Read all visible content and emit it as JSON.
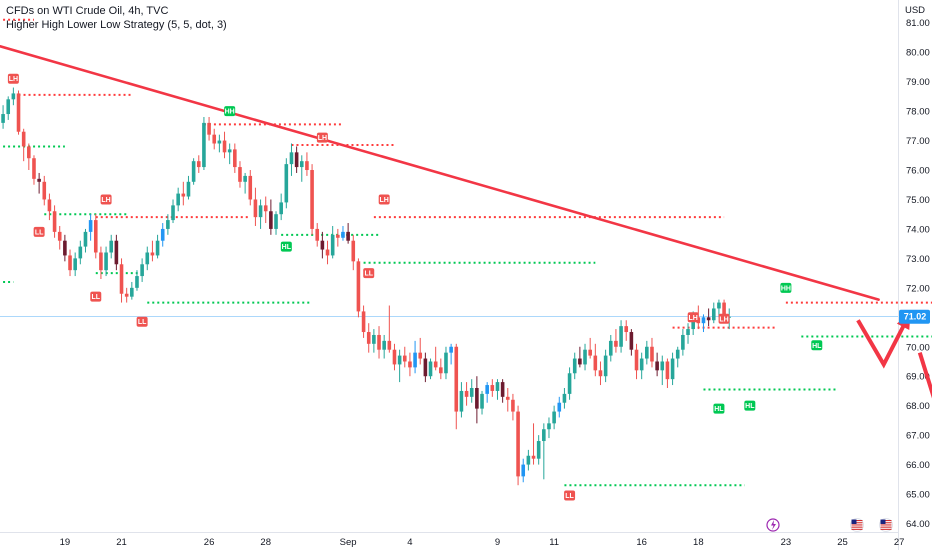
{
  "header": {
    "symbol_line": "CFDs on WTI Crude Oil, 4h, TVC",
    "indicator_line": "Higher High Lower Low Strategy (5, 5, dot, 3)",
    "currency": "USD"
  },
  "colors": {
    "up": "#26a69a",
    "up_alt": "#2196f3",
    "down": "#ef5350",
    "down_dark": "#6d1b2f",
    "trendline": "#f23645",
    "support": "#00c853",
    "resistance": "#ff3b3b",
    "last_price": "#2196f3",
    "badge_green": "#00c853",
    "badge_red": "#ef5350"
  },
  "chart_data": {
    "type": "candlestick",
    "ylim": [
      64.0,
      81.5
    ],
    "y_ticks": [
      "64.00",
      "65.00",
      "66.00",
      "67.00",
      "68.00",
      "69.00",
      "70.00",
      "71.00",
      "72.00",
      "73.00",
      "74.00",
      "75.00",
      "76.00",
      "77.00",
      "78.00",
      "79.00",
      "80.00",
      "81.00"
    ],
    "x_ticks": [
      {
        "label": "19",
        "bar": 12
      },
      {
        "label": "21",
        "bar": 23
      },
      {
        "label": "26",
        "bar": 40
      },
      {
        "label": "28",
        "bar": 51
      },
      {
        "label": "Sep",
        "bar": 67
      },
      {
        "label": "4",
        "bar": 79
      },
      {
        "label": "9",
        "bar": 96
      },
      {
        "label": "11",
        "bar": 107
      },
      {
        "label": "16",
        "bar": 124
      },
      {
        "label": "18",
        "bar": 135
      },
      {
        "label": "23",
        "bar": 152
      },
      {
        "label": "25",
        "bar": 163
      },
      {
        "label": "27",
        "bar": 174
      }
    ],
    "last_price": "71.02",
    "candles": [
      [
        77.6,
        78.2,
        77.4,
        77.9
      ],
      [
        77.9,
        78.5,
        77.7,
        78.4
      ],
      [
        78.4,
        78.8,
        78.2,
        78.6
      ],
      [
        78.6,
        78.7,
        77.2,
        77.3
      ],
      [
        77.3,
        77.4,
        76.3,
        76.8
      ],
      [
        76.8,
        76.9,
        76.0,
        76.4
      ],
      [
        76.4,
        76.5,
        75.5,
        75.7
      ],
      [
        75.7,
        75.9,
        75.2,
        75.6
      ],
      [
        75.6,
        75.8,
        74.8,
        75.0
      ],
      [
        75.0,
        75.2,
        74.3,
        74.6
      ],
      [
        74.6,
        74.8,
        73.7,
        73.9
      ],
      [
        73.9,
        74.1,
        73.3,
        73.6
      ],
      [
        73.6,
        73.8,
        72.9,
        73.1
      ],
      [
        73.1,
        73.3,
        72.4,
        72.6
      ],
      [
        72.6,
        73.2,
        72.4,
        73.0
      ],
      [
        73.0,
        73.6,
        72.8,
        73.4
      ],
      [
        73.4,
        74.0,
        73.2,
        73.9
      ],
      [
        73.9,
        74.5,
        73.6,
        74.3
      ],
      [
        74.3,
        74.5,
        73.0,
        73.2
      ],
      [
        73.2,
        73.4,
        72.3,
        72.6
      ],
      [
        72.6,
        73.4,
        72.4,
        73.2
      ],
      [
        73.2,
        73.8,
        73.0,
        73.6
      ],
      [
        73.6,
        73.8,
        72.6,
        72.8
      ],
      [
        72.8,
        73.0,
        71.5,
        71.8
      ],
      [
        71.8,
        72.0,
        71.5,
        71.7
      ],
      [
        71.7,
        72.2,
        71.6,
        72.0
      ],
      [
        72.0,
        72.6,
        71.9,
        72.4
      ],
      [
        72.4,
        73.0,
        72.2,
        72.8
      ],
      [
        72.8,
        73.4,
        72.6,
        73.2
      ],
      [
        73.2,
        73.6,
        72.9,
        73.1
      ],
      [
        73.1,
        73.8,
        73.0,
        73.6
      ],
      [
        73.6,
        74.2,
        73.4,
        74.0
      ],
      [
        74.0,
        74.5,
        73.8,
        74.3
      ],
      [
        74.3,
        75.0,
        74.2,
        74.8
      ],
      [
        74.8,
        75.4,
        74.6,
        75.2
      ],
      [
        75.2,
        75.6,
        74.8,
        75.1
      ],
      [
        75.1,
        75.8,
        75.0,
        75.6
      ],
      [
        75.6,
        76.4,
        75.5,
        76.3
      ],
      [
        76.3,
        76.5,
        75.9,
        76.1
      ],
      [
        76.1,
        77.8,
        76.0,
        77.6
      ],
      [
        77.6,
        77.8,
        77.0,
        77.2
      ],
      [
        77.2,
        77.4,
        76.7,
        76.9
      ],
      [
        76.9,
        77.2,
        76.6,
        77.0
      ],
      [
        77.0,
        77.3,
        76.4,
        76.6
      ],
      [
        76.6,
        76.9,
        76.2,
        76.7
      ],
      [
        76.7,
        76.9,
        75.9,
        76.1
      ],
      [
        76.1,
        76.3,
        75.4,
        75.6
      ],
      [
        75.6,
        75.9,
        75.2,
        75.8
      ],
      [
        75.8,
        76.0,
        74.8,
        75.0
      ],
      [
        75.0,
        75.4,
        74.1,
        74.4
      ],
      [
        74.4,
        75.0,
        74.0,
        74.8
      ],
      [
        74.8,
        75.1,
        74.2,
        74.6
      ],
      [
        74.6,
        75.0,
        73.8,
        74.0
      ],
      [
        74.0,
        74.6,
        73.8,
        74.5
      ],
      [
        74.5,
        75.2,
        74.3,
        74.9
      ],
      [
        74.9,
        76.4,
        74.7,
        76.2
      ],
      [
        76.2,
        76.9,
        75.8,
        76.6
      ],
      [
        76.6,
        76.8,
        75.9,
        76.1
      ],
      [
        76.1,
        76.5,
        75.6,
        76.3
      ],
      [
        76.3,
        76.6,
        75.8,
        76.0
      ],
      [
        76.0,
        76.2,
        73.8,
        74.0
      ],
      [
        74.0,
        74.2,
        73.4,
        73.6
      ],
      [
        73.6,
        73.9,
        73.0,
        73.3
      ],
      [
        73.3,
        73.6,
        72.8,
        73.1
      ],
      [
        73.1,
        74.1,
        73.0,
        73.8
      ],
      [
        73.8,
        74.0,
        73.4,
        73.7
      ],
      [
        73.7,
        74.1,
        73.6,
        73.9
      ],
      [
        73.9,
        74.2,
        73.5,
        73.6
      ],
      [
        73.6,
        73.8,
        72.6,
        72.9
      ],
      [
        72.9,
        73.0,
        71.0,
        71.2
      ],
      [
        71.2,
        71.4,
        70.3,
        70.5
      ],
      [
        70.5,
        70.8,
        69.8,
        70.1
      ],
      [
        70.1,
        70.6,
        69.8,
        70.4
      ],
      [
        70.4,
        70.7,
        69.6,
        69.9
      ],
      [
        69.9,
        70.4,
        69.6,
        70.2
      ],
      [
        70.2,
        71.4,
        69.8,
        69.9
      ],
      [
        69.9,
        70.1,
        69.2,
        69.4
      ],
      [
        69.4,
        69.9,
        68.8,
        69.7
      ],
      [
        69.7,
        70.0,
        69.3,
        69.5
      ],
      [
        69.5,
        69.8,
        69.0,
        69.3
      ],
      [
        69.3,
        70.2,
        69.1,
        69.8
      ],
      [
        69.8,
        70.3,
        69.4,
        69.6
      ],
      [
        69.6,
        69.8,
        68.8,
        69.0
      ],
      [
        69.0,
        69.6,
        68.9,
        69.5
      ],
      [
        69.5,
        70.0,
        69.2,
        69.3
      ],
      [
        69.3,
        69.6,
        68.9,
        69.1
      ],
      [
        69.1,
        70.0,
        68.9,
        69.8
      ],
      [
        69.8,
        70.1,
        69.4,
        70.0
      ],
      [
        70.0,
        70.1,
        67.2,
        67.8
      ],
      [
        67.8,
        68.8,
        67.6,
        68.5
      ],
      [
        68.5,
        68.8,
        68.0,
        68.3
      ],
      [
        68.3,
        68.9,
        68.1,
        68.6
      ],
      [
        68.6,
        69.0,
        67.4,
        67.9
      ],
      [
        67.9,
        68.5,
        67.7,
        68.4
      ],
      [
        68.4,
        68.8,
        68.1,
        68.7
      ],
      [
        68.7,
        68.9,
        68.3,
        68.5
      ],
      [
        68.5,
        68.9,
        68.2,
        68.8
      ],
      [
        68.8,
        68.9,
        68.1,
        68.3
      ],
      [
        68.3,
        68.6,
        67.8,
        68.2
      ],
      [
        68.2,
        68.4,
        67.5,
        67.8
      ],
      [
        67.8,
        68.0,
        65.3,
        65.6
      ],
      [
        65.6,
        66.2,
        65.4,
        66.0
      ],
      [
        66.0,
        66.5,
        65.8,
        66.3
      ],
      [
        66.3,
        67.4,
        66.0,
        66.2
      ],
      [
        66.2,
        67.0,
        66.0,
        66.8
      ],
      [
        66.8,
        67.4,
        65.5,
        67.2
      ],
      [
        67.2,
        67.6,
        66.9,
        67.4
      ],
      [
        67.4,
        68.0,
        67.2,
        67.8
      ],
      [
        67.8,
        68.3,
        67.6,
        68.1
      ],
      [
        68.1,
        68.6,
        67.9,
        68.4
      ],
      [
        68.4,
        69.3,
        68.2,
        69.1
      ],
      [
        69.1,
        69.8,
        68.9,
        69.6
      ],
      [
        69.6,
        70.0,
        69.3,
        69.4
      ],
      [
        69.4,
        70.1,
        69.2,
        69.9
      ],
      [
        69.9,
        70.3,
        69.6,
        69.7
      ],
      [
        69.7,
        70.1,
        69.0,
        69.2
      ],
      [
        69.2,
        69.5,
        68.7,
        69.0
      ],
      [
        69.0,
        69.9,
        68.8,
        69.7
      ],
      [
        69.7,
        70.4,
        69.5,
        70.2
      ],
      [
        70.2,
        70.6,
        69.8,
        70.0
      ],
      [
        70.0,
        70.9,
        69.8,
        70.7
      ],
      [
        70.7,
        70.9,
        70.2,
        70.5
      ],
      [
        70.5,
        70.6,
        69.7,
        69.9
      ],
      [
        69.9,
        70.1,
        68.9,
        69.2
      ],
      [
        69.2,
        69.8,
        68.9,
        69.6
      ],
      [
        69.6,
        70.2,
        69.4,
        70.0
      ],
      [
        70.0,
        70.3,
        69.3,
        69.5
      ],
      [
        69.5,
        69.8,
        69.0,
        69.2
      ],
      [
        69.2,
        69.7,
        68.7,
        69.5
      ],
      [
        69.5,
        69.6,
        68.6,
        68.9
      ],
      [
        68.9,
        69.8,
        68.7,
        69.6
      ],
      [
        69.6,
        70.0,
        69.3,
        69.9
      ],
      [
        69.9,
        70.6,
        69.7,
        70.4
      ],
      [
        70.4,
        70.8,
        70.1,
        70.6
      ],
      [
        70.6,
        71.2,
        70.4,
        71.0
      ],
      [
        71.0,
        71.4,
        70.6,
        70.8
      ],
      [
        70.8,
        71.1,
        70.5,
        71.0
      ],
      [
        71.0,
        71.3,
        70.7,
        70.9
      ],
      [
        70.9,
        71.5,
        70.8,
        71.3
      ],
      [
        71.3,
        71.6,
        71.0,
        71.5
      ],
      [
        71.5,
        71.6,
        70.8,
        71.0
      ],
      [
        71.0,
        71.3,
        70.6,
        71.02
      ]
    ],
    "resistance_lines": [
      {
        "level": 81.1,
        "from": 0,
        "to": 6
      },
      {
        "level": 78.55,
        "from": 3,
        "to": 25
      },
      {
        "level": 77.55,
        "from": 39,
        "to": 66
      },
      {
        "level": 76.85,
        "from": 56,
        "to": 76
      },
      {
        "level": 74.4,
        "from": 18,
        "to": 48
      },
      {
        "level": 74.4,
        "from": 72,
        "to": 140
      },
      {
        "level": 70.65,
        "from": 130,
        "to": 150
      },
      {
        "level": 71.5,
        "from": 152,
        "to": 186
      }
    ],
    "support_lines": [
      {
        "level": 76.8,
        "from": 0,
        "to": 12
      },
      {
        "level": 74.5,
        "from": 8,
        "to": 24
      },
      {
        "level": 72.5,
        "from": 18,
        "to": 27
      },
      {
        "level": 71.5,
        "from": 28,
        "to": 60
      },
      {
        "level": 73.8,
        "from": 54,
        "to": 73
      },
      {
        "level": 72.85,
        "from": 70,
        "to": 115
      },
      {
        "level": 65.3,
        "from": 109,
        "to": 144
      },
      {
        "level": 68.55,
        "from": 136,
        "to": 162
      },
      {
        "level": 70.35,
        "from": 155,
        "to": 186
      },
      {
        "level": 72.2,
        "from": 0,
        "to": 2
      }
    ],
    "trendline": {
      "from": {
        "bar": 0,
        "price": 80.2
      },
      "to": {
        "bar": 170,
        "price": 71.6
      }
    },
    "badges": [
      {
        "text": "LH",
        "bar": 2,
        "price": 79.1,
        "kind": "red"
      },
      {
        "text": "LL",
        "bar": 7,
        "price": 73.9,
        "kind": "red"
      },
      {
        "text": "LH",
        "bar": 20,
        "price": 75.0,
        "kind": "red"
      },
      {
        "text": "LL",
        "bar": 18,
        "price": 71.7,
        "kind": "red"
      },
      {
        "text": "LL",
        "bar": 27,
        "price": 70.85,
        "kind": "red"
      },
      {
        "text": "HH",
        "bar": 44,
        "price": 78.0,
        "kind": "green"
      },
      {
        "text": "LH",
        "bar": 62,
        "price": 77.1,
        "kind": "red"
      },
      {
        "text": "HL",
        "bar": 55,
        "price": 73.4,
        "kind": "green"
      },
      {
        "text": "LH",
        "bar": 74,
        "price": 75.0,
        "kind": "red"
      },
      {
        "text": "LL",
        "bar": 71,
        "price": 72.5,
        "kind": "red"
      },
      {
        "text": "LL",
        "bar": 110,
        "price": 64.95,
        "kind": "red"
      },
      {
        "text": "LH",
        "bar": 134,
        "price": 71.0,
        "kind": "red"
      },
      {
        "text": "LH",
        "bar": 140,
        "price": 70.95,
        "kind": "red"
      },
      {
        "text": "HL",
        "bar": 139,
        "price": 67.9,
        "kind": "green"
      },
      {
        "text": "HL",
        "bar": 145,
        "price": 68.0,
        "kind": "green"
      },
      {
        "text": "HH",
        "bar": 152,
        "price": 72.0,
        "kind": "green"
      },
      {
        "text": "HL",
        "bar": 158,
        "price": 70.05,
        "kind": "green"
      }
    ],
    "forecast_arrows": [
      {
        "points": [
          [
            166,
            70.9
          ],
          [
            171,
            69.4
          ],
          [
            176,
            71.1
          ]
        ]
      },
      {
        "points": [
          [
            178,
            69.8
          ],
          [
            183,
            67.0
          ]
        ]
      }
    ]
  },
  "footer_icons": [
    "lightning-icon",
    "us-flag-icon",
    "us-flag-icon"
  ]
}
